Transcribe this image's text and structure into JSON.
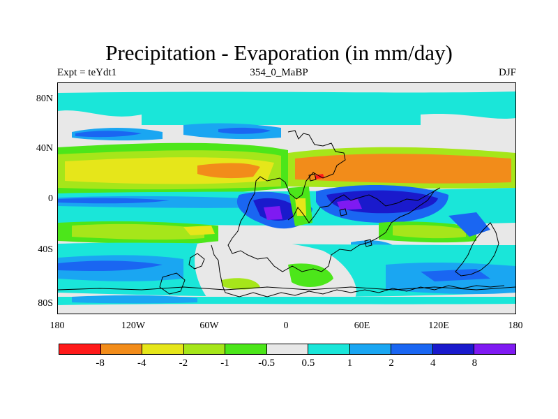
{
  "title": "Precipitation - Evaporation (in mm/day)",
  "subtitle_left": "Expt = teYdt1",
  "subtitle_center": "354_0_MaBP",
  "subtitle_right": "DJF",
  "lat_labels": [
    "80N",
    "40N",
    "0",
    "40S",
    "80S"
  ],
  "lon_labels": [
    "180",
    "120W",
    "60W",
    "0",
    "60E",
    "120E",
    "180"
  ],
  "colorbar": {
    "colors": [
      "#ff1a1a",
      "#f28c1a",
      "#e6e61a",
      "#a6e61a",
      "#4ce61a",
      "#e8e8e8",
      "#1ae6d9",
      "#1aa6f2",
      "#1a66f2",
      "#1a1acc",
      "#7f1af2"
    ],
    "labels": [
      "-8",
      "-4",
      "-2",
      "-1",
      "-0.5",
      "0.5",
      "1",
      "2",
      "4",
      "8"
    ]
  },
  "colors": {
    "neutral": "#e8e8e8",
    "cyan": "#1ae6d9",
    "light_blue": "#1aa6f2",
    "blue": "#1a66f2",
    "dark_blue": "#1a1acc",
    "purple": "#7f1af2",
    "green": "#4ce61a",
    "yellow_green": "#a6e61a",
    "yellow": "#e6e61a",
    "orange": "#f28c1a",
    "red": "#ff1a1a"
  }
}
